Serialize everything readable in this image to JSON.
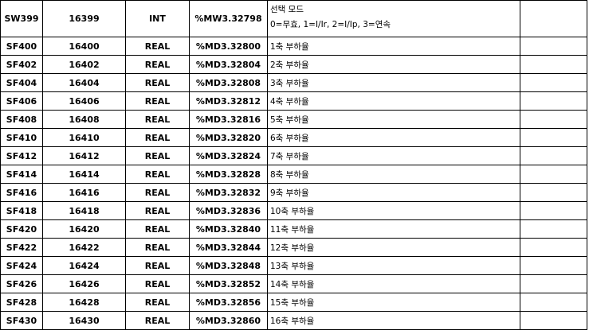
{
  "rows": [
    {
      "name": "SW399",
      "num": "16399",
      "type": "INT",
      "addr": "%MW3.32798",
      "desc_line1": "선택 모드",
      "desc_line2": "0=무효, 1=I/Ir, 2=I/Ip, 3=연속"
    },
    {
      "name": "SF400",
      "num": "16400",
      "type": "REAL",
      "addr": "%MD3.32800",
      "desc": "1축 부하율"
    },
    {
      "name": "SF402",
      "num": "16402",
      "type": "REAL",
      "addr": "%MD3.32804",
      "desc": "2축 부하율"
    },
    {
      "name": "SF404",
      "num": "16404",
      "type": "REAL",
      "addr": "%MD3.32808",
      "desc": "3축 부하율"
    },
    {
      "name": "SF406",
      "num": "16406",
      "type": "REAL",
      "addr": "%MD3.32812",
      "desc": "4축 부하율"
    },
    {
      "name": "SF408",
      "num": "16408",
      "type": "REAL",
      "addr": "%MD3.32816",
      "desc": "5축 부하율"
    },
    {
      "name": "SF410",
      "num": "16410",
      "type": "REAL",
      "addr": "%MD3.32820",
      "desc": "6축 부하율"
    },
    {
      "name": "SF412",
      "num": "16412",
      "type": "REAL",
      "addr": "%MD3.32824",
      "desc": "7축 부하율"
    },
    {
      "name": "SF414",
      "num": "16414",
      "type": "REAL",
      "addr": "%MD3.32828",
      "desc": "8축 부하율"
    },
    {
      "name": "SF416",
      "num": "16416",
      "type": "REAL",
      "addr": "%MD3.32832",
      "desc": "9축 부하율"
    },
    {
      "name": "SF418",
      "num": "16418",
      "type": "REAL",
      "addr": "%MD3.32836",
      "desc": "10축 부하율"
    },
    {
      "name": "SF420",
      "num": "16420",
      "type": "REAL",
      "addr": "%MD3.32840",
      "desc": "11축 부하율"
    },
    {
      "name": "SF422",
      "num": "16422",
      "type": "REAL",
      "addr": "%MD3.32844",
      "desc": "12축 부하율"
    },
    {
      "name": "SF424",
      "num": "16424",
      "type": "REAL",
      "addr": "%MD3.32848",
      "desc": "13축 부하율"
    },
    {
      "name": "SF426",
      "num": "16426",
      "type": "REAL",
      "addr": "%MD3.32852",
      "desc": "14축 부하율"
    },
    {
      "name": "SF428",
      "num": "16428",
      "type": "REAL",
      "addr": "%MD3.32856",
      "desc": "15축 부하율"
    },
    {
      "name": "SF430",
      "num": "16430",
      "type": "REAL",
      "addr": "%MD3.32860",
      "desc": "16축 부하율"
    }
  ]
}
